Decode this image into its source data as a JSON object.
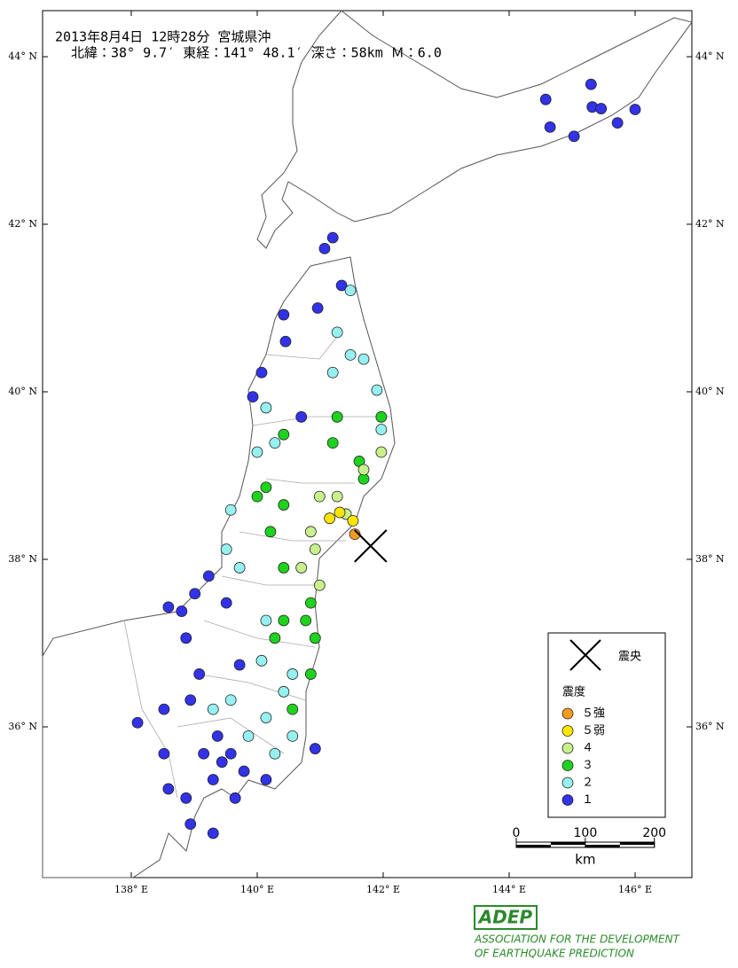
{
  "chart_data": {
    "type": "map",
    "title": "2013年8月4日 12時28分 宮城県沖",
    "subtitle": "北緯：38° 9.7′ 東経：141° 48.1′ 深さ：58km Ｍ：6.0",
    "xlim": [
      136.592,
      146.901
    ],
    "ylim": [
      34.201,
      44.55
    ],
    "xticks": [
      {
        "value": 138,
        "label": "138° E"
      },
      {
        "value": 140,
        "label": "140° E"
      },
      {
        "value": 142,
        "label": "142° E"
      },
      {
        "value": 144,
        "label": "144° E"
      },
      {
        "value": 146,
        "label": "146° E"
      }
    ],
    "yticks": [
      {
        "value": 36,
        "label": "36° N"
      },
      {
        "value": 38,
        "label": "38° N"
      },
      {
        "value": 40,
        "label": "40° N"
      },
      {
        "value": 42,
        "label": "42° N"
      },
      {
        "value": 44,
        "label": "44° N"
      }
    ],
    "epicenter": {
      "label": "震央",
      "lon": 141.8,
      "lat": 38.16
    },
    "legend_title": "震度",
    "series": [
      {
        "name": "５強",
        "color": "#f39c1e",
        "stations": [
          [
            141.55,
            38.3
          ]
        ]
      },
      {
        "name": "５弱",
        "color": "#ffe600",
        "stations": [
          [
            141.15,
            38.49
          ],
          [
            141.31,
            38.56
          ],
          [
            141.52,
            38.46
          ]
        ]
      },
      {
        "name": "４",
        "color": "#c8f08c",
        "stations": [
          [
            140.99,
            38.75
          ],
          [
            141.27,
            38.75
          ],
          [
            141.41,
            38.54
          ],
          [
            140.85,
            38.33
          ],
          [
            140.92,
            38.12
          ],
          [
            140.7,
            37.9
          ],
          [
            140.99,
            37.69
          ],
          [
            141.69,
            39.07
          ],
          [
            141.97,
            39.28
          ]
        ]
      },
      {
        "name": "３",
        "color": "#1ed21e",
        "stations": [
          [
            141.97,
            39.7
          ],
          [
            141.27,
            39.7
          ],
          [
            141.2,
            39.39
          ],
          [
            141.62,
            39.17
          ],
          [
            140.42,
            39.49
          ],
          [
            140.14,
            38.86
          ],
          [
            140.42,
            38.65
          ],
          [
            141.69,
            38.96
          ],
          [
            140.21,
            38.33
          ],
          [
            140.42,
            37.9
          ],
          [
            140.85,
            37.48
          ],
          [
            140.42,
            37.27
          ],
          [
            140.92,
            37.06
          ],
          [
            140.28,
            37.06
          ],
          [
            140.85,
            36.63
          ],
          [
            140.56,
            36.21
          ],
          [
            140.0,
            38.75
          ],
          [
            140.77,
            37.27
          ]
        ]
      },
      {
        "name": "２",
        "color": "#96f0f0",
        "stations": [
          [
            141.48,
            41.21
          ],
          [
            141.27,
            40.71
          ],
          [
            141.48,
            40.44
          ],
          [
            141.69,
            40.39
          ],
          [
            141.2,
            40.23
          ],
          [
            141.9,
            40.02
          ],
          [
            140.14,
            39.81
          ],
          [
            140.28,
            39.39
          ],
          [
            140.0,
            39.28
          ],
          [
            141.97,
            39.55
          ],
          [
            139.58,
            38.59
          ],
          [
            139.51,
            38.12
          ],
          [
            139.72,
            37.9
          ],
          [
            140.14,
            37.27
          ],
          [
            140.07,
            36.79
          ],
          [
            140.56,
            36.63
          ],
          [
            139.58,
            36.32
          ],
          [
            140.14,
            36.11
          ],
          [
            140.56,
            35.89
          ],
          [
            139.86,
            35.89
          ],
          [
            140.42,
            36.42
          ],
          [
            139.3,
            36.21
          ],
          [
            140.28,
            35.68
          ]
        ]
      },
      {
        "name": "１",
        "color": "#3232e6",
        "stations": [
          [
            144.58,
            43.49
          ],
          [
            144.65,
            43.16
          ],
          [
            145.03,
            43.05
          ],
          [
            145.3,
            43.67
          ],
          [
            145.32,
            43.4
          ],
          [
            145.46,
            43.38
          ],
          [
            145.72,
            43.21
          ],
          [
            146.0,
            43.37
          ],
          [
            141.2,
            41.84
          ],
          [
            141.07,
            41.71
          ],
          [
            141.34,
            41.27
          ],
          [
            140.96,
            41.0
          ],
          [
            140.42,
            40.92
          ],
          [
            140.45,
            40.6
          ],
          [
            140.07,
            40.23
          ],
          [
            139.93,
            39.94
          ],
          [
            140.7,
            39.7
          ],
          [
            139.23,
            37.8
          ],
          [
            139.01,
            37.59
          ],
          [
            138.8,
            37.38
          ],
          [
            138.59,
            37.43
          ],
          [
            139.51,
            37.48
          ],
          [
            138.87,
            37.06
          ],
          [
            139.08,
            36.63
          ],
          [
            138.94,
            36.32
          ],
          [
            139.37,
            35.89
          ],
          [
            139.58,
            35.68
          ],
          [
            139.79,
            35.47
          ],
          [
            139.3,
            35.37
          ],
          [
            138.52,
            35.68
          ],
          [
            138.1,
            36.05
          ],
          [
            138.52,
            36.21
          ],
          [
            138.87,
            35.15
          ],
          [
            138.94,
            34.84
          ],
          [
            139.3,
            34.73
          ],
          [
            139.65,
            35.15
          ],
          [
            140.14,
            35.37
          ],
          [
            140.92,
            35.74
          ],
          [
            138.59,
            35.26
          ],
          [
            139.72,
            36.74
          ],
          [
            139.15,
            35.68
          ],
          [
            139.44,
            35.58
          ]
        ]
      }
    ],
    "scale": {
      "ticks": [
        0,
        100,
        200
      ],
      "unit": "km"
    },
    "logo": {
      "mark": "ADEP",
      "line1": "ASSOCIATION FOR THE DEVELOPMENT",
      "line2": "OF EARTHQUAKE PREDICTION"
    }
  }
}
